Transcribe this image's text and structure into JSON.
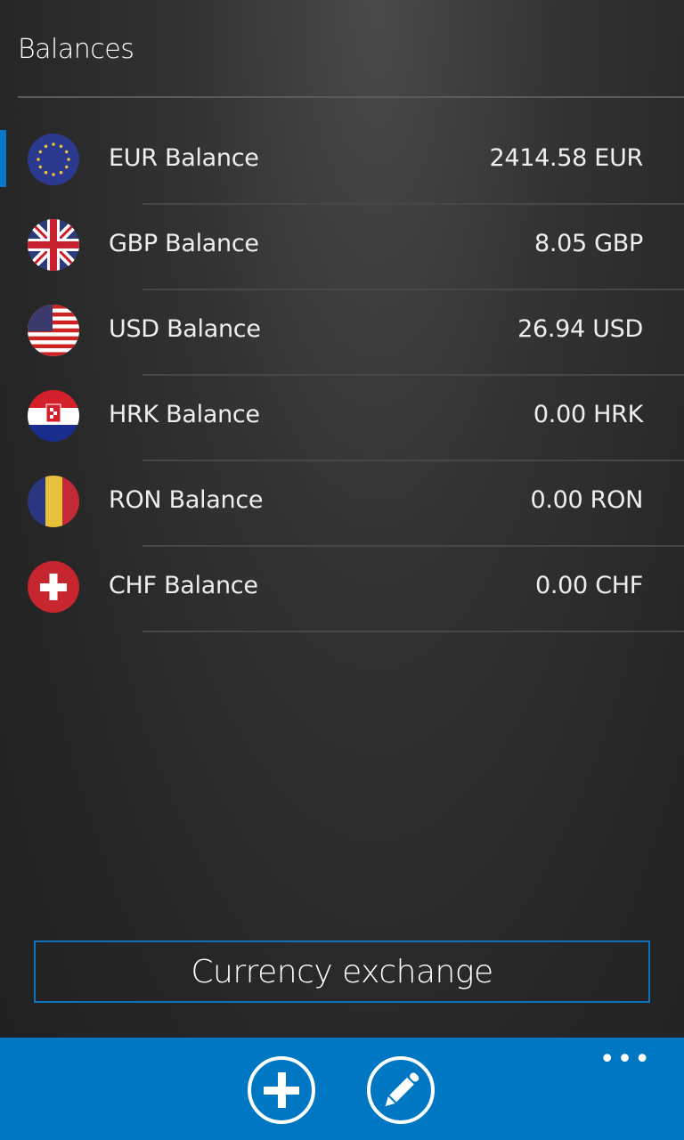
{
  "header": {
    "title": "Balances"
  },
  "balances": [
    {
      "flag": "eu-flag-icon",
      "label": "EUR Balance",
      "value": "2414.58 EUR",
      "selected": true
    },
    {
      "flag": "uk-flag-icon",
      "label": "GBP Balance",
      "value": "8.05 GBP"
    },
    {
      "flag": "us-flag-icon",
      "label": "USD Balance",
      "value": "26.94 USD"
    },
    {
      "flag": "croatia-flag-icon",
      "label": "HRK Balance",
      "value": "0.00 HRK"
    },
    {
      "flag": "romania-flag-icon",
      "label": "RON Balance",
      "value": "0.00 RON"
    },
    {
      "flag": "switzerland-flag-icon",
      "label": "CHF Balance",
      "value": "0.00 CHF"
    }
  ],
  "exchange_button": "Currency exchange",
  "appbar": {
    "color": "#0077c2",
    "buttons": [
      "add-icon",
      "edit-icon"
    ],
    "more": "more-icon"
  }
}
